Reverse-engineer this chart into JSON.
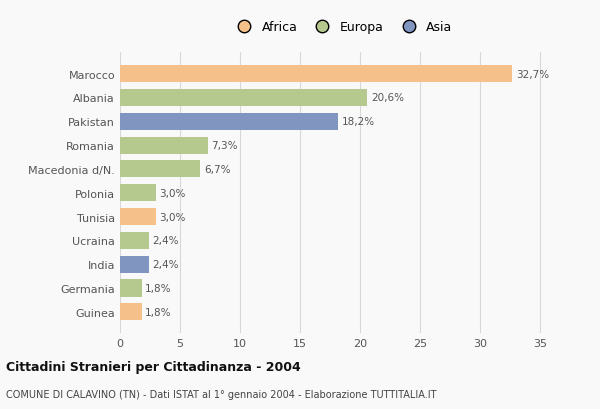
{
  "countries": [
    "Marocco",
    "Albania",
    "Pakistan",
    "Romania",
    "Macedonia d/N.",
    "Polonia",
    "Tunisia",
    "Ucraina",
    "India",
    "Germania",
    "Guinea"
  ],
  "values": [
    32.7,
    20.6,
    18.2,
    7.3,
    6.7,
    3.0,
    3.0,
    2.4,
    2.4,
    1.8,
    1.8
  ],
  "labels": [
    "32,7%",
    "20,6%",
    "18,2%",
    "7,3%",
    "6,7%",
    "3,0%",
    "3,0%",
    "2,4%",
    "2,4%",
    "1,8%",
    "1,8%"
  ],
  "continents": [
    "Africa",
    "Europa",
    "Asia",
    "Europa",
    "Europa",
    "Europa",
    "Africa",
    "Europa",
    "Asia",
    "Europa",
    "Africa"
  ],
  "colors": {
    "Africa": "#F5C08A",
    "Europa": "#B5C98E",
    "Asia": "#8095C0"
  },
  "legend_labels": [
    "Africa",
    "Europa",
    "Asia"
  ],
  "legend_colors": [
    "#F5C08A",
    "#B5C98E",
    "#8095C0"
  ],
  "xlim": [
    0,
    37
  ],
  "xticks": [
    0,
    5,
    10,
    15,
    20,
    25,
    30,
    35
  ],
  "title": "Cittadini Stranieri per Cittadinanza - 2004",
  "subtitle": "COMUNE DI CALAVINO (TN) - Dati ISTAT al 1° gennaio 2004 - Elaborazione TUTTITALIA.IT",
  "bg_color": "#f9f9f9",
  "grid_color": "#d8d8d8"
}
